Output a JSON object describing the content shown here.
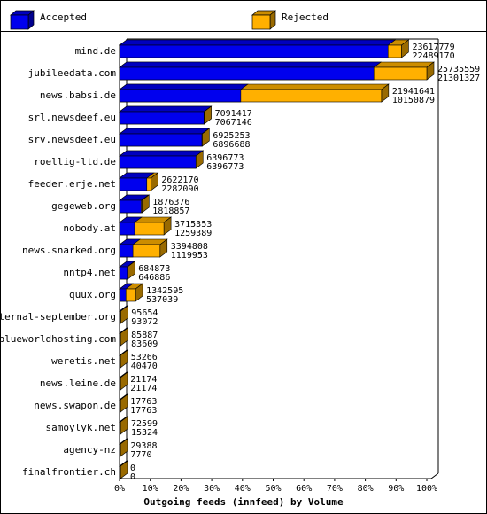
{
  "chart_data": {
    "type": "bar3d-overlap",
    "title": "Outgoing feeds (innfeed) by Volume",
    "categories": [
      "mind.de",
      "jubileedata.com",
      "news.babsi.de",
      "srl.newsdeef.eu",
      "srv.newsdeef.eu",
      "roellig-ltd.de",
      "feeder.erje.net",
      "gegeweb.org",
      "nobody.at",
      "news.snarked.org",
      "nntp4.net",
      "quux.org",
      "eternal-september.org",
      "blueworldhosting.com",
      "weretis.net",
      "news.leine.de",
      "news.swapon.de",
      "samoylyk.net",
      "agency-nz",
      "finalfrontier.ch"
    ],
    "series": [
      {
        "name": "Rejected",
        "color": "#ffb000",
        "values": [
          23617779,
          25735559,
          21941641,
          7091417,
          6925253,
          6396773,
          2622170,
          1876376,
          3715353,
          3394808,
          684873,
          1342595,
          95654,
          85887,
          53266,
          21174,
          17763,
          72599,
          29388,
          0
        ]
      },
      {
        "name": "Accepted",
        "color": "#0000ee",
        "values": [
          22489170,
          21301327,
          10150879,
          7067146,
          6896688,
          6396773,
          2282090,
          1818857,
          1259389,
          1119953,
          646886,
          537039,
          93072,
          83609,
          40470,
          21174,
          17763,
          15324,
          7770,
          0
        ]
      }
    ],
    "xlim": [
      0,
      25735559
    ],
    "xticks": [
      {
        "value": 0,
        "label": "0%"
      },
      {
        "value": 2573555.9,
        "label": "10%"
      },
      {
        "value": 5147111.8,
        "label": "20%"
      },
      {
        "value": 7720667.7,
        "label": "30%"
      },
      {
        "value": 10294223.6,
        "label": "40%"
      },
      {
        "value": 12867779.5,
        "label": "50%"
      },
      {
        "value": 15441335.4,
        "label": "60%"
      },
      {
        "value": 18014891.3,
        "label": "70%"
      },
      {
        "value": 20588447.2,
        "label": "80%"
      },
      {
        "value": 23162003.1,
        "label": "90%"
      },
      {
        "value": 25735559,
        "label": "100%"
      }
    ]
  }
}
